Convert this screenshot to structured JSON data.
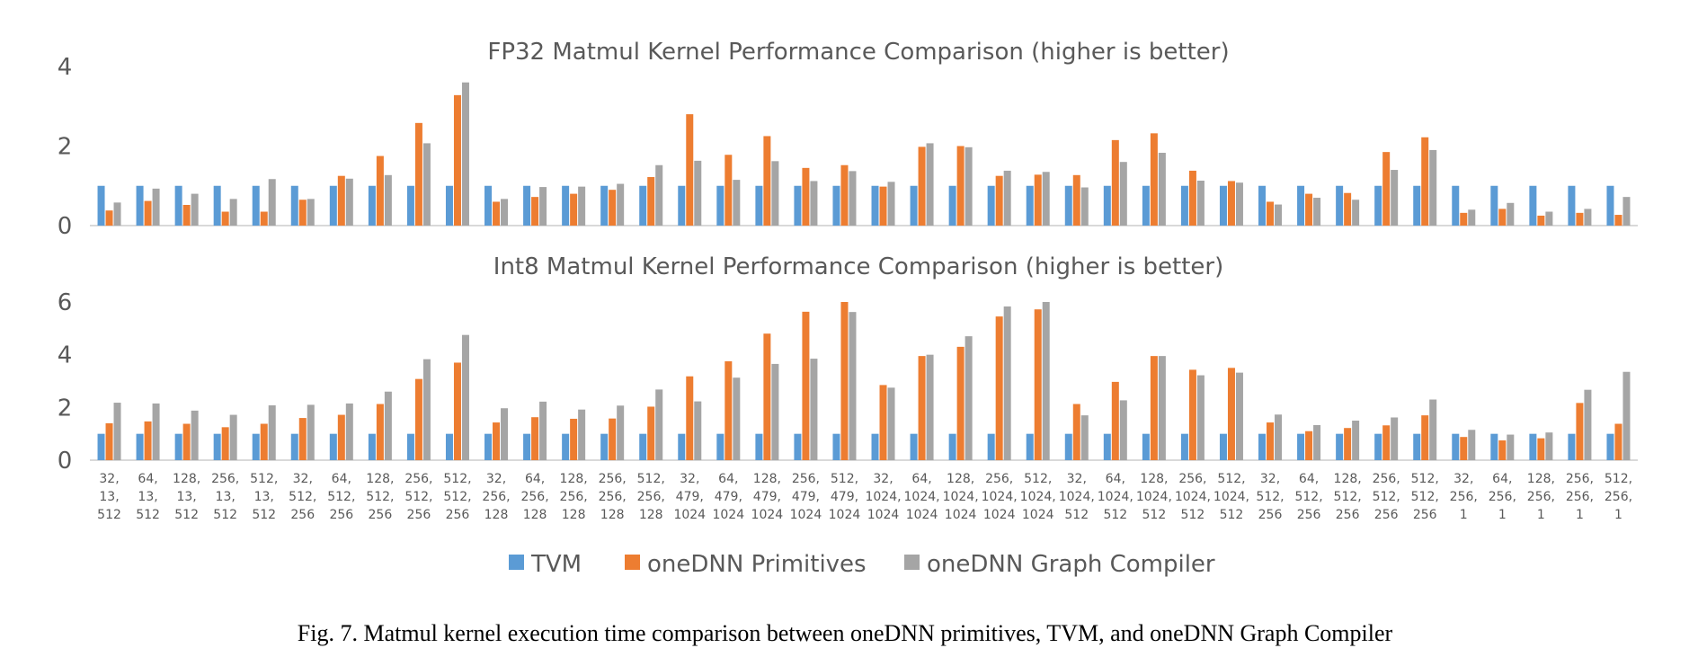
{
  "chart_data": [
    {
      "type": "bar",
      "title": "FP32 Matmul Kernel Performance Comparison (higher is better)",
      "xlabel": "",
      "ylabel": "",
      "ylim": [
        0,
        4
      ],
      "yticks": [
        0,
        2,
        4
      ],
      "grid": false,
      "legend": "bottom",
      "categories": [
        "32, 13, 512",
        "64, 13, 512",
        "128, 13, 512",
        "256, 13, 512",
        "512, 13, 512",
        "32, 512, 256",
        "64, 512, 256",
        "128, 512, 256",
        "256, 512, 256",
        "512, 512, 256",
        "32, 256, 128",
        "64, 256, 128",
        "128, 256, 128",
        "256, 256, 128",
        "512, 256, 128",
        "32, 479, 1024",
        "64, 479, 1024",
        "128, 479, 1024",
        "256, 479, 1024",
        "512, 479, 1024",
        "32, 1024, 1024",
        "64, 1024, 1024",
        "128, 1024, 1024",
        "256, 1024, 1024",
        "512, 1024, 1024",
        "32, 1024, 512",
        "64, 1024, 512",
        "128, 1024, 512",
        "256, 1024, 512",
        "512, 1024, 512",
        "32, 512, 256",
        "64, 512, 256",
        "128, 512, 256",
        "256, 512, 256",
        "512, 512, 256",
        "32, 256, 1",
        "64, 256, 1",
        "128, 256, 1",
        "256, 256, 1",
        "512, 256, 1"
      ],
      "series": [
        {
          "name": "TVM",
          "color": "#5b9bd5",
          "values": [
            1,
            1,
            1,
            1,
            1,
            1,
            1,
            1,
            1,
            1,
            1,
            1,
            1,
            1,
            1,
            1,
            1,
            1,
            1,
            1,
            1,
            1,
            1,
            1,
            1,
            1,
            1,
            1,
            1,
            1,
            1,
            1,
            1,
            1,
            1,
            1,
            1,
            1,
            1,
            1
          ]
        },
        {
          "name": "oneDNN Primitives",
          "color": "#ed7d31",
          "values": [
            0.38,
            0.62,
            0.52,
            0.35,
            0.35,
            0.65,
            1.25,
            1.75,
            2.58,
            3.28,
            0.6,
            0.72,
            0.8,
            0.9,
            1.22,
            2.8,
            1.78,
            2.25,
            1.45,
            1.52,
            0.98,
            1.98,
            2.0,
            1.25,
            1.28,
            1.27,
            2.15,
            2.32,
            1.38,
            1.12,
            0.6,
            0.8,
            0.82,
            1.85,
            2.22,
            0.32,
            0.42,
            0.25,
            0.32,
            0.27
          ]
        },
        {
          "name": "oneDNN Graph Compiler",
          "color": "#a5a5a5",
          "values": [
            0.58,
            0.93,
            0.8,
            0.67,
            1.17,
            0.67,
            1.18,
            1.27,
            2.07,
            3.6,
            0.67,
            0.97,
            0.98,
            1.05,
            1.52,
            1.63,
            1.15,
            1.62,
            1.12,
            1.37,
            1.1,
            2.07,
            1.97,
            1.38,
            1.35,
            0.96,
            1.6,
            1.83,
            1.13,
            1.08,
            0.53,
            0.7,
            0.65,
            1.4,
            1.9,
            0.4,
            0.57,
            0.35,
            0.42,
            0.72
          ]
        }
      ]
    },
    {
      "type": "bar",
      "title": "Int8 Matmul Kernel Performance Comparison (higher is better)",
      "xlabel": "",
      "ylabel": "",
      "ylim": [
        0,
        6
      ],
      "yticks": [
        0,
        2,
        4,
        6
      ],
      "grid": false,
      "legend": "bottom",
      "categories": [
        "32, 13, 512",
        "64, 13, 512",
        "128, 13, 512",
        "256, 13, 512",
        "512, 13, 512",
        "32, 512, 256",
        "64, 512, 256",
        "128, 512, 256",
        "256, 512, 256",
        "512, 512, 256",
        "32, 256, 128",
        "64, 256, 128",
        "128, 256, 128",
        "256, 256, 128",
        "512, 256, 128",
        "32, 479, 1024",
        "64, 479, 1024",
        "128, 479, 1024",
        "256, 479, 1024",
        "512, 479, 1024",
        "32, 1024, 1024",
        "64, 1024, 1024",
        "128, 1024, 1024",
        "256, 1024, 1024",
        "512, 1024, 1024",
        "32, 1024, 512",
        "64, 1024, 512",
        "128, 1024, 512",
        "256, 1024, 512",
        "512, 1024, 512",
        "32, 512, 256",
        "64, 512, 256",
        "128, 512, 256",
        "256, 512, 256",
        "512, 512, 256",
        "32, 256, 1",
        "64, 256, 1",
        "128, 256, 1",
        "256, 256, 1",
        "512, 256, 1"
      ],
      "series": [
        {
          "name": "TVM",
          "color": "#5b9bd5",
          "values": [
            1,
            1,
            1,
            1,
            1,
            1,
            1,
            1,
            1,
            1,
            1,
            1,
            1,
            1,
            1,
            1,
            1,
            1,
            1,
            1,
            1,
            1,
            1,
            1,
            1,
            1,
            1,
            1,
            1,
            1,
            1,
            1,
            1,
            1,
            1,
            1,
            1,
            1,
            1,
            1
          ]
        },
        {
          "name": "oneDNN Primitives",
          "color": "#ed7d31",
          "values": [
            1.4,
            1.47,
            1.38,
            1.25,
            1.38,
            1.6,
            1.72,
            2.13,
            3.08,
            3.7,
            1.43,
            1.63,
            1.57,
            1.58,
            2.03,
            3.18,
            3.75,
            4.8,
            5.63,
            6.0,
            2.85,
            3.95,
            4.3,
            5.45,
            5.72,
            2.13,
            2.97,
            3.95,
            3.43,
            3.5,
            1.43,
            1.1,
            1.22,
            1.32,
            1.7,
            0.88,
            0.75,
            0.83,
            2.17,
            1.38
          ]
        },
        {
          "name": "oneDNN Graph Compiler",
          "color": "#a5a5a5",
          "values": [
            2.18,
            2.15,
            1.88,
            1.72,
            2.08,
            2.1,
            2.15,
            2.6,
            3.83,
            4.75,
            1.97,
            2.22,
            1.92,
            2.07,
            2.68,
            2.23,
            3.13,
            3.65,
            3.85,
            5.62,
            2.75,
            4.0,
            4.7,
            5.83,
            6.0,
            1.7,
            2.27,
            3.95,
            3.22,
            3.32,
            1.73,
            1.33,
            1.5,
            1.62,
            2.3,
            1.15,
            0.97,
            1.05,
            2.67,
            3.35
          ]
        }
      ]
    }
  ],
  "legend": {
    "items": [
      {
        "label": "TVM",
        "color": "#5b9bd5"
      },
      {
        "label": "oneDNN Primitives",
        "color": "#ed7d31"
      },
      {
        "label": "oneDNN Graph Compiler",
        "color": "#a5a5a5"
      }
    ]
  },
  "caption": "Fig. 7. Matmul kernel execution time comparison between oneDNN primitives, TVM, and oneDNN Graph Compiler"
}
